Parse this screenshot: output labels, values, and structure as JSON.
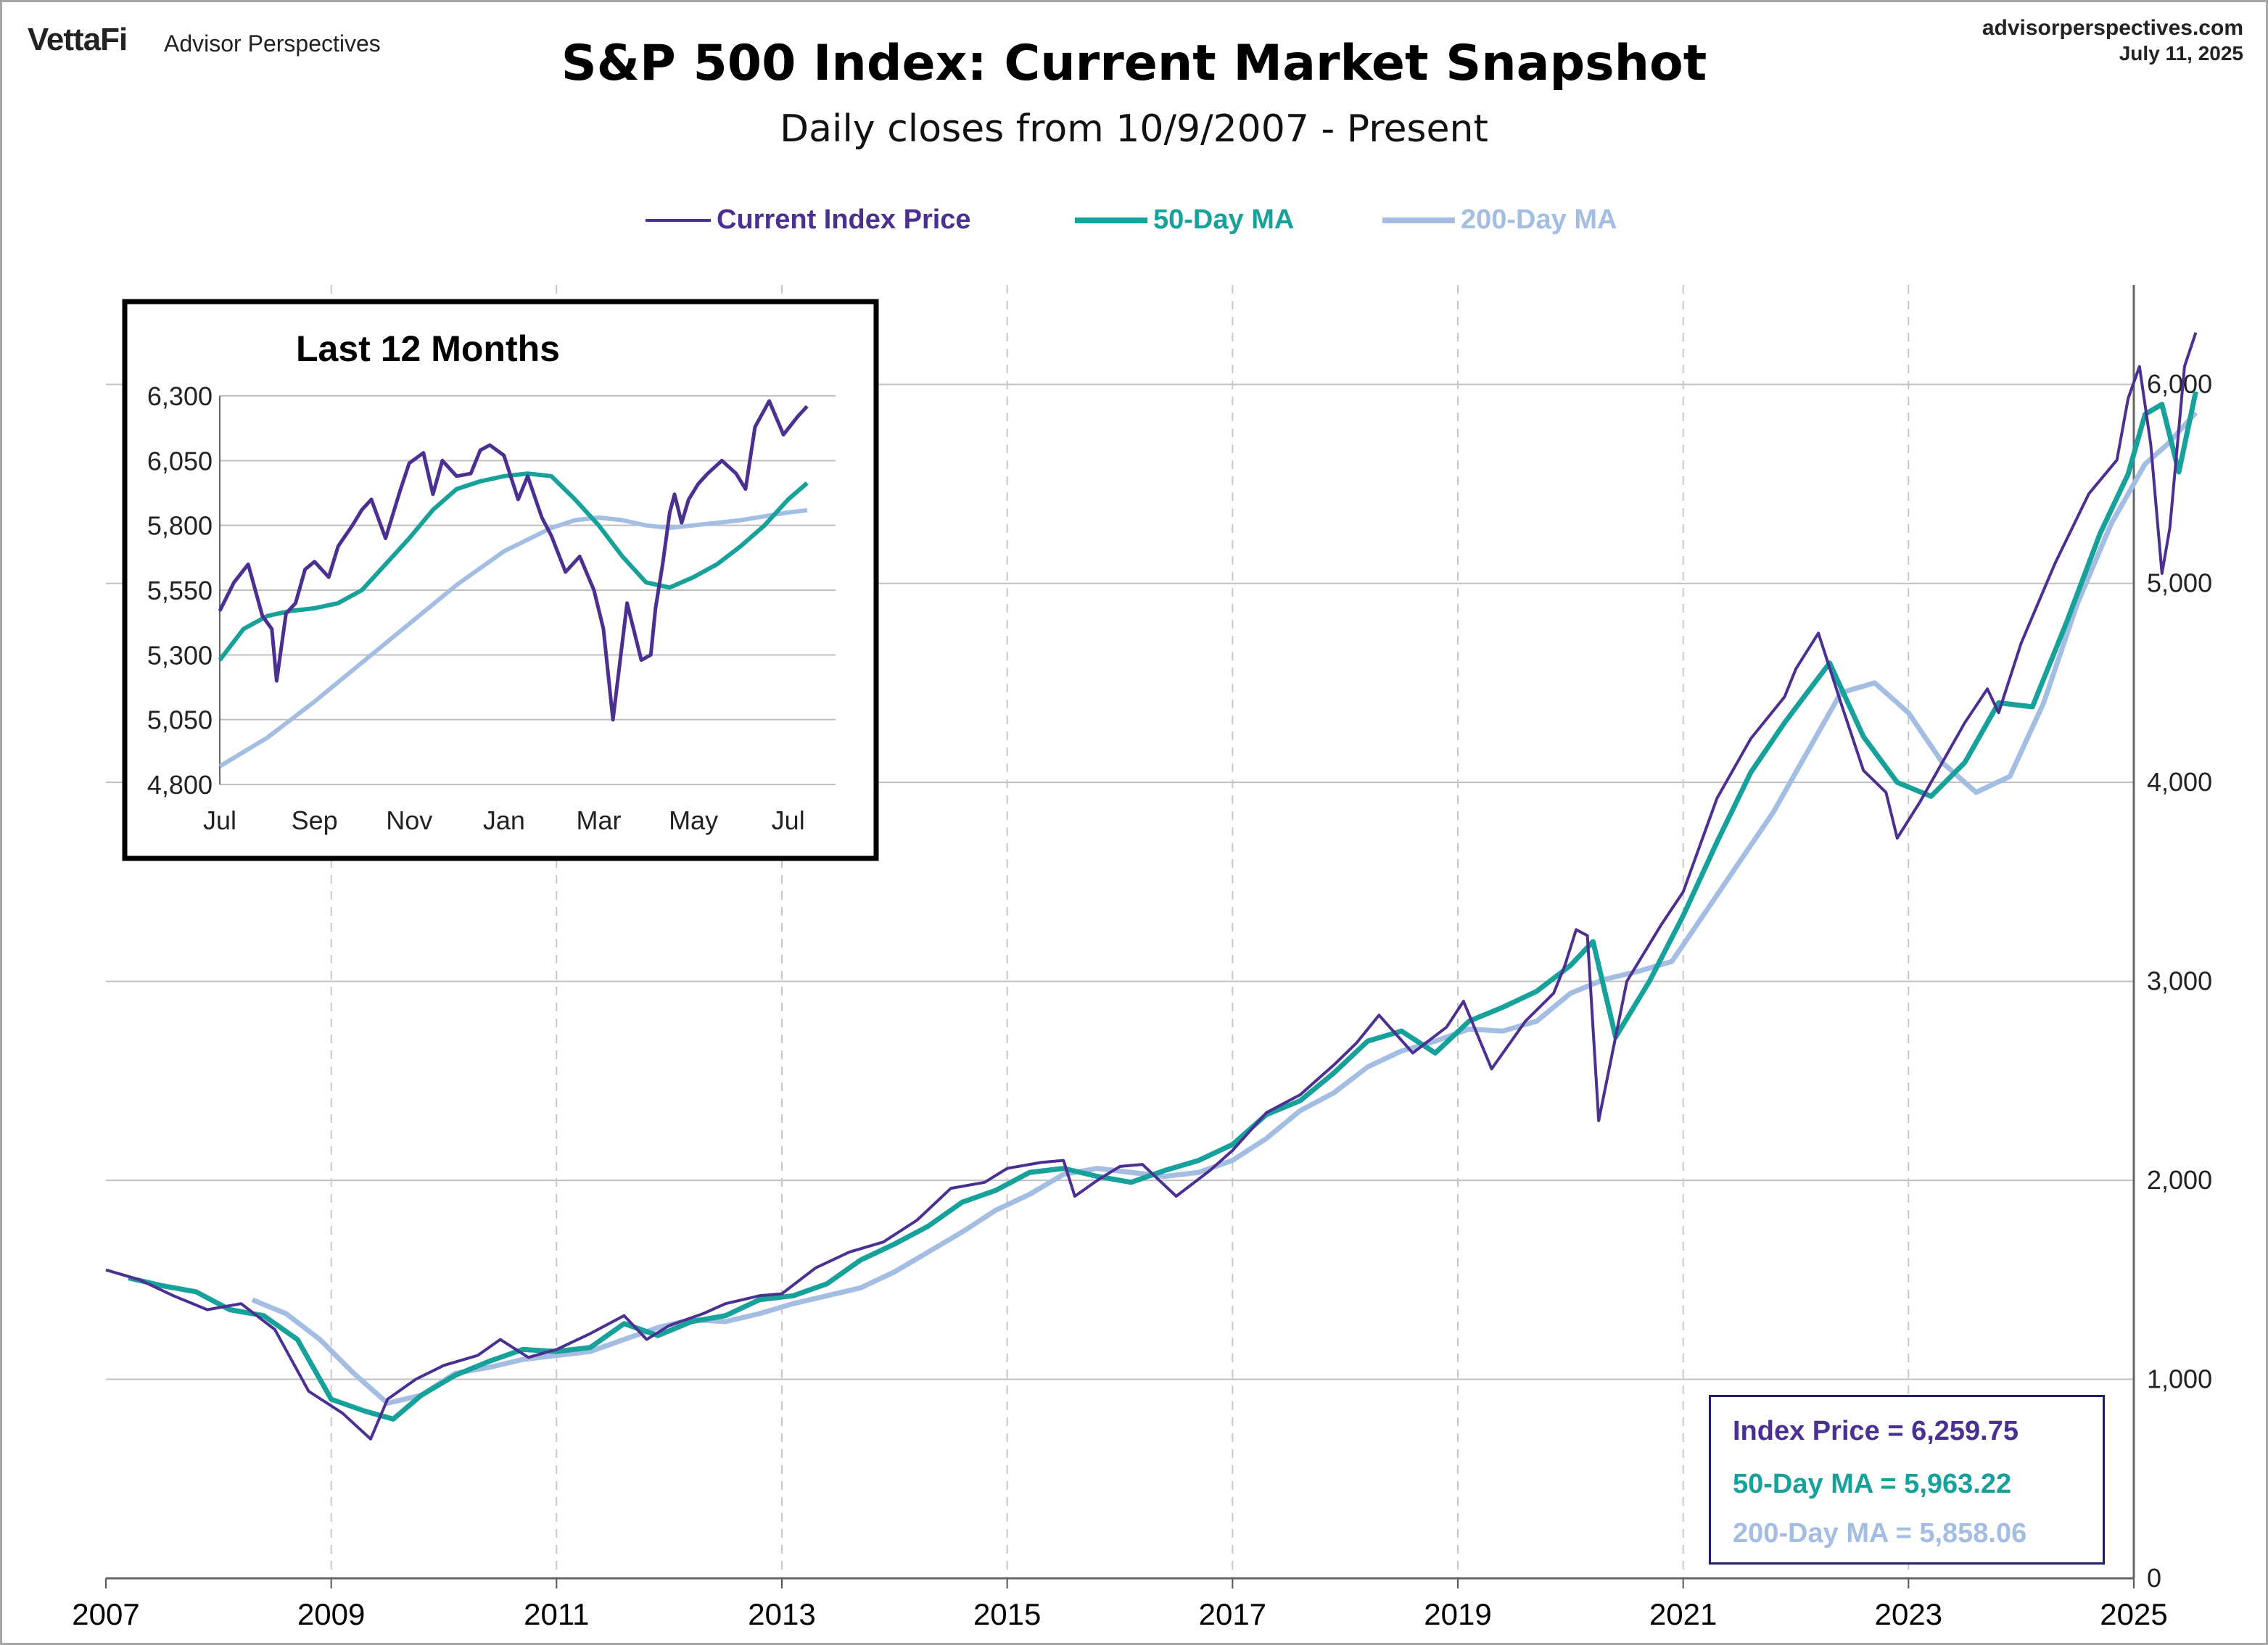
{
  "header": {
    "logo": "VettaFi",
    "logo_sub": "Advisor Perspectives",
    "site": "advisorperspectives.com",
    "date": "July 11, 2025",
    "title": "S&P 500 Index: Current Market Snapshot",
    "subtitle": "Daily closes from 10/9/2007 - Present"
  },
  "legend": [
    {
      "name": "Current Index Price",
      "color": "#4b2f91"
    },
    {
      "name": "50-Day MA",
      "color": "#17a19b"
    },
    {
      "name": "200-Day MA",
      "color": "#a4bde2"
    }
  ],
  "value_box": {
    "price": "Index Price = 6,259.75",
    "ma50": "50-Day MA = 5,963.22",
    "ma200": "200-Day MA = 5,858.06"
  },
  "colors": {
    "price": "#4b2f91",
    "ma50": "#17a19b",
    "ma200": "#a4bde2",
    "grid": "#bfbfbf"
  },
  "chart_data": [
    {
      "type": "line",
      "title": "",
      "xlabel": "",
      "ylabel": "",
      "x_ticks": [
        "2007",
        "2009",
        "2011",
        "2013",
        "2015",
        "2017",
        "2019",
        "2021",
        "2023",
        "2025"
      ],
      "y_ticks": [
        0,
        1000,
        2000,
        3000,
        4000,
        5000,
        6000
      ],
      "y_tick_labels": [
        "0",
        "1,000",
        "2,000",
        "3,000",
        "4,000",
        "5,000",
        "6,000"
      ],
      "xlim": [
        2007,
        2025
      ],
      "ylim": [
        0,
        6500
      ],
      "grid": true,
      "y_axis_side": "right",
      "series": [
        {
          "name": "Current Index Price",
          "x": [
            2007.0,
            2007.3,
            2007.6,
            2007.9,
            2008.2,
            2008.5,
            2008.8,
            2009.1,
            2009.35,
            2009.5,
            2009.75,
            2010.0,
            2010.3,
            2010.5,
            2010.75,
            2011.0,
            2011.3,
            2011.6,
            2011.8,
            2012.0,
            2012.3,
            2012.5,
            2012.8,
            2013.0,
            2013.3,
            2013.6,
            2013.9,
            2014.2,
            2014.5,
            2014.8,
            2015.0,
            2015.3,
            2015.5,
            2015.6,
            2015.8,
            2016.0,
            2016.2,
            2016.5,
            2016.8,
            2017.0,
            2017.3,
            2017.6,
            2017.9,
            2018.1,
            2018.3,
            2018.6,
            2018.9,
            2019.05,
            2019.3,
            2019.6,
            2019.85,
            2019.95,
            2020.05,
            2020.15,
            2020.25,
            2020.5,
            2020.8,
            2021.0,
            2021.3,
            2021.6,
            2021.9,
            2022.0,
            2022.2,
            2022.4,
            2022.6,
            2022.8,
            2022.9,
            2023.1,
            2023.3,
            2023.5,
            2023.7,
            2023.8,
            2024.0,
            2024.3,
            2024.6,
            2024.85,
            2024.95,
            2025.05,
            2025.15,
            2025.25,
            2025.32,
            2025.45,
            2025.55
          ],
          "y": [
            1550,
            1500,
            1420,
            1350,
            1380,
            1250,
            940,
            830,
            700,
            900,
            1000,
            1070,
            1120,
            1200,
            1110,
            1150,
            1230,
            1320,
            1200,
            1270,
            1330,
            1380,
            1420,
            1430,
            1560,
            1640,
            1690,
            1800,
            1960,
            1990,
            2060,
            2090,
            2100,
            1920,
            2000,
            2070,
            2080,
            1920,
            2050,
            2150,
            2340,
            2430,
            2580,
            2690,
            2830,
            2640,
            2770,
            2900,
            2560,
            2800,
            2940,
            3080,
            3260,
            3230,
            2300,
            3000,
            3280,
            3450,
            3920,
            4220,
            4430,
            4570,
            4750,
            4400,
            4060,
            3950,
            3720,
            3900,
            4100,
            4300,
            4470,
            4350,
            4700,
            5100,
            5450,
            5620,
            5930,
            6090,
            5700,
            5050,
            5280,
            6090,
            6259.75
          ]
        },
        {
          "name": "50-Day MA",
          "x": [
            2007.2,
            2007.5,
            2007.8,
            2008.1,
            2008.4,
            2008.7,
            2009.0,
            2009.3,
            2009.55,
            2009.8,
            2010.1,
            2010.4,
            2010.7,
            2011.0,
            2011.3,
            2011.6,
            2011.9,
            2012.2,
            2012.5,
            2012.8,
            2013.1,
            2013.4,
            2013.7,
            2014.0,
            2014.3,
            2014.6,
            2014.9,
            2015.2,
            2015.5,
            2015.8,
            2016.1,
            2016.4,
            2016.7,
            2017.0,
            2017.3,
            2017.6,
            2017.9,
            2018.2,
            2018.5,
            2018.8,
            2019.1,
            2019.4,
            2019.7,
            2020.0,
            2020.2,
            2020.4,
            2020.7,
            2021.0,
            2021.3,
            2021.6,
            2021.9,
            2022.1,
            2022.3,
            2022.6,
            2022.9,
            2023.2,
            2023.5,
            2023.8,
            2024.1,
            2024.4,
            2024.7,
            2024.95,
            2025.1,
            2025.25,
            2025.4,
            2025.55
          ],
          "y": [
            1510,
            1470,
            1440,
            1350,
            1320,
            1200,
            900,
            840,
            800,
            920,
            1020,
            1090,
            1150,
            1140,
            1160,
            1280,
            1220,
            1290,
            1320,
            1400,
            1420,
            1480,
            1600,
            1680,
            1770,
            1890,
            1950,
            2040,
            2060,
            2020,
            1990,
            2050,
            2100,
            2180,
            2330,
            2400,
            2540,
            2700,
            2750,
            2640,
            2800,
            2870,
            2950,
            3080,
            3200,
            2720,
            3000,
            3330,
            3700,
            4050,
            4300,
            4450,
            4600,
            4230,
            4000,
            3930,
            4100,
            4400,
            4380,
            4800,
            5250,
            5550,
            5850,
            5900,
            5560,
            5963.22
          ]
        },
        {
          "name": "200-Day MA",
          "x": [
            2008.3,
            2008.6,
            2008.9,
            2009.2,
            2009.5,
            2009.8,
            2010.1,
            2010.4,
            2010.7,
            2011.0,
            2011.3,
            2011.6,
            2011.9,
            2012.2,
            2012.5,
            2012.8,
            2013.1,
            2013.4,
            2013.7,
            2014.0,
            2014.3,
            2014.6,
            2014.9,
            2015.2,
            2015.5,
            2015.8,
            2016.1,
            2016.4,
            2016.7,
            2017.0,
            2017.3,
            2017.6,
            2017.9,
            2018.2,
            2018.5,
            2018.8,
            2019.1,
            2019.4,
            2019.7,
            2020.0,
            2020.3,
            2020.6,
            2020.9,
            2021.2,
            2021.5,
            2021.8,
            2022.1,
            2022.4,
            2022.7,
            2023.0,
            2023.3,
            2023.6,
            2023.9,
            2024.2,
            2024.5,
            2024.8,
            2025.1,
            2025.3,
            2025.55
          ],
          "y": [
            1400,
            1330,
            1200,
            1030,
            880,
            920,
            1030,
            1060,
            1100,
            1120,
            1140,
            1200,
            1260,
            1300,
            1290,
            1330,
            1380,
            1420,
            1460,
            1540,
            1640,
            1740,
            1850,
            1930,
            2030,
            2060,
            2040,
            2020,
            2040,
            2100,
            2210,
            2350,
            2440,
            2570,
            2650,
            2700,
            2760,
            2750,
            2800,
            2940,
            3010,
            3050,
            3100,
            3350,
            3600,
            3850,
            4150,
            4450,
            4500,
            4350,
            4100,
            3950,
            4030,
            4400,
            4900,
            5300,
            5600,
            5700,
            5858.06
          ]
        }
      ]
    },
    {
      "type": "line",
      "title": "Last 12 Months",
      "xlabel": "",
      "ylabel": "",
      "x_ticks": [
        "Jul",
        "Sep",
        "Nov",
        "Jan",
        "Mar",
        "May",
        "Jul"
      ],
      "y_ticks": [
        4800,
        5050,
        5300,
        5550,
        5800,
        6050,
        6300
      ],
      "y_tick_labels": [
        "4,800",
        "5,050",
        "5,300",
        "5,550",
        "5,800",
        "6,050",
        "6,300"
      ],
      "xlim": [
        0,
        13
      ],
      "ylim": [
        4800,
        6300
      ],
      "grid": true,
      "y_axis_side": "left",
      "series": [
        {
          "name": "Current Index Price",
          "x": [
            0,
            0.3,
            0.6,
            0.9,
            1.1,
            1.2,
            1.3,
            1.4,
            1.6,
            1.8,
            2.0,
            2.3,
            2.5,
            2.8,
            3.0,
            3.2,
            3.5,
            3.8,
            4.0,
            4.3,
            4.5,
            4.7,
            5.0,
            5.3,
            5.5,
            5.7,
            6.0,
            6.3,
            6.5,
            6.8,
            7.0,
            7.3,
            7.6,
            7.9,
            8.1,
            8.3,
            8.6,
            8.9,
            9.1,
            9.2,
            9.35,
            9.5,
            9.6,
            9.75,
            9.9,
            10.1,
            10.3,
            10.6,
            10.9,
            11.1,
            11.3,
            11.6,
            11.9,
            12.2,
            12.4
          ],
          "y": [
            5470,
            5580,
            5650,
            5450,
            5400,
            5200,
            5330,
            5460,
            5500,
            5630,
            5660,
            5600,
            5720,
            5800,
            5860,
            5900,
            5750,
            5930,
            6040,
            6080,
            5920,
            6050,
            5990,
            6000,
            6090,
            6110,
            6070,
            5900,
            5990,
            5830,
            5760,
            5620,
            5680,
            5550,
            5400,
            5050,
            5500,
            5280,
            5300,
            5480,
            5650,
            5850,
            5920,
            5810,
            5900,
            5960,
            6000,
            6050,
            6000,
            5940,
            6180,
            6280,
            6150,
            6220,
            6259.75
          ]
        },
        {
          "name": "50-Day MA",
          "x": [
            0,
            0.5,
            1.0,
            1.5,
            2.0,
            2.5,
            3.0,
            3.5,
            4.0,
            4.5,
            5.0,
            5.5,
            6.0,
            6.5,
            7.0,
            7.5,
            8.0,
            8.5,
            9.0,
            9.5,
            10.0,
            10.5,
            11.0,
            11.5,
            12.0,
            12.4
          ],
          "y": [
            5280,
            5400,
            5450,
            5470,
            5480,
            5500,
            5550,
            5650,
            5750,
            5860,
            5940,
            5970,
            5990,
            6000,
            5990,
            5900,
            5800,
            5680,
            5580,
            5560,
            5600,
            5650,
            5720,
            5800,
            5900,
            5963.22
          ]
        },
        {
          "name": "200-Day MA",
          "x": [
            0,
            1,
            2,
            3,
            4,
            5,
            6,
            7,
            7.5,
            8,
            8.5,
            9,
            9.5,
            10,
            10.5,
            11,
            11.5,
            12,
            12.4
          ],
          "y": [
            4870,
            4980,
            5120,
            5270,
            5420,
            5570,
            5700,
            5790,
            5820,
            5830,
            5820,
            5800,
            5790,
            5800,
            5810,
            5820,
            5835,
            5850,
            5858.06
          ]
        }
      ]
    }
  ]
}
